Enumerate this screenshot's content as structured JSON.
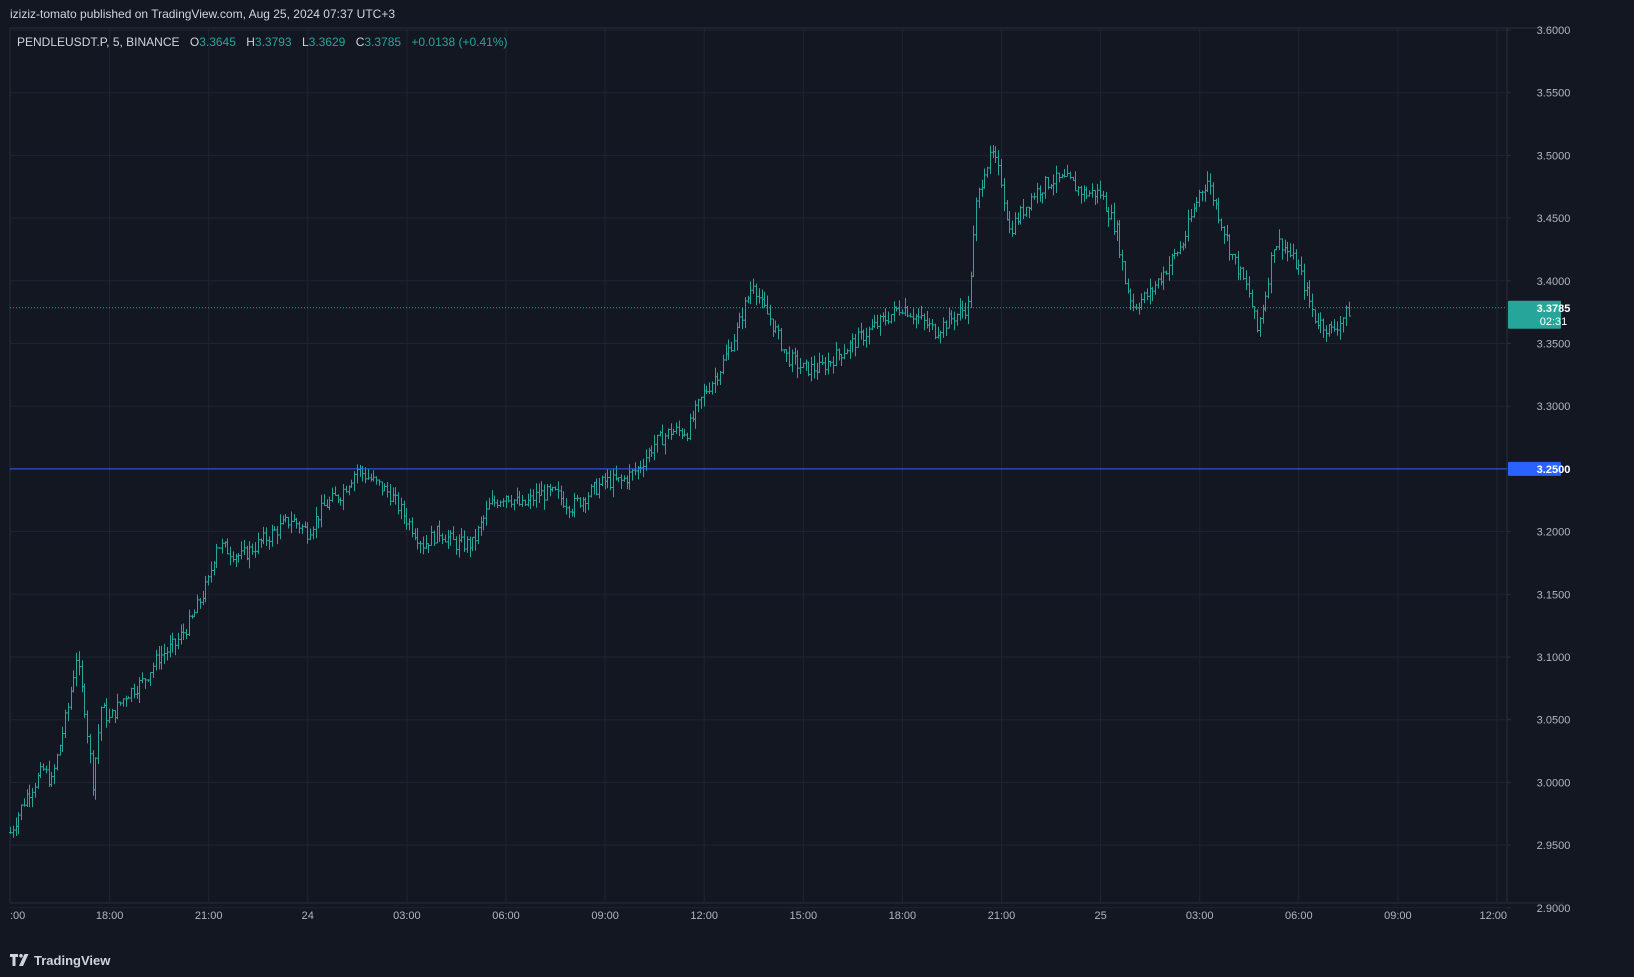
{
  "header": {
    "publish_line": "iziziz-tomato published on TradingView.com, Aug 25, 2024 07:37 UTC+3"
  },
  "legend": {
    "symbol": "PENDLEUSDT.P, 5, BINANCE",
    "open_label": "O",
    "open": "3.3645",
    "high_label": "H",
    "high": "3.3793",
    "low_label": "L",
    "low": "3.3629",
    "close_label": "C",
    "close": "3.3785",
    "change": "+0.0138 (+0.41%)"
  },
  "footer": {
    "brand": "TradingView",
    "logo_icon": "tradingview-logo-icon"
  },
  "colors": {
    "background": "#131722",
    "grid": "#1f2432",
    "bar": "#26a69a",
    "hline": "#2962ff",
    "price_tag": "#26a69a",
    "hline_tag": "#2962ff"
  },
  "chart_data": {
    "type": "ohlc",
    "symbol": "PENDLEUSDT.P",
    "interval": "5",
    "exchange": "BINANCE",
    "ylim": [
      2.9,
      3.6
    ],
    "yticks": [
      "3.6000",
      "3.5500",
      "3.5000",
      "3.4500",
      "3.4000",
      "3.3500",
      "3.3000",
      "3.2500",
      "3.2000",
      "3.1500",
      "3.1000",
      "3.0500",
      "3.0000",
      "2.9500",
      "2.9000"
    ],
    "xticks": [
      ":00",
      "18:00",
      "21:00",
      "24",
      "03:00",
      "06:00",
      "09:00",
      "12:00",
      "15:00",
      "18:00",
      "21:00",
      "25",
      "03:00",
      "06:00",
      "09:00",
      "12:00"
    ],
    "grid": true,
    "current_price": "3.3785",
    "countdown": "02:31",
    "horizontal_line": "3.2500",
    "close_path": [
      [
        "15:00",
        2.96
      ],
      [
        "15:30",
        2.99
      ],
      [
        "16:00",
        3.01
      ],
      [
        "16:15",
        3.0
      ],
      [
        "16:45",
        3.06
      ],
      [
        "17:00",
        3.1
      ],
      [
        "17:15",
        3.06
      ],
      [
        "17:30",
        3.0
      ],
      [
        "17:45",
        3.06
      ],
      [
        "18:00",
        3.05
      ],
      [
        "18:30",
        3.07
      ],
      [
        "19:00",
        3.08
      ],
      [
        "19:30",
        3.1
      ],
      [
        "20:00",
        3.11
      ],
      [
        "20:30",
        3.13
      ],
      [
        "21:00",
        3.16
      ],
      [
        "21:15",
        3.19
      ],
      [
        "22:00",
        3.18
      ],
      [
        "22:30",
        3.19
      ],
      [
        "23:00",
        3.2
      ],
      [
        "23:30",
        3.21
      ],
      [
        "00:00",
        3.2
      ],
      [
        "00:30",
        3.22
      ],
      [
        "01:00",
        3.23
      ],
      [
        "01:30",
        3.25
      ],
      [
        "02:00",
        3.24
      ],
      [
        "02:30",
        3.23
      ],
      [
        "03:00",
        3.21
      ],
      [
        "03:30",
        3.19
      ],
      [
        "04:00",
        3.2
      ],
      [
        "04:30",
        3.19
      ],
      [
        "05:00",
        3.19
      ],
      [
        "05:30",
        3.22
      ],
      [
        "06:00",
        3.23
      ],
      [
        "06:30",
        3.22
      ],
      [
        "07:00",
        3.23
      ],
      [
        "07:30",
        3.23
      ],
      [
        "08:00",
        3.22
      ],
      [
        "08:30",
        3.23
      ],
      [
        "09:00",
        3.24
      ],
      [
        "09:30",
        3.24
      ],
      [
        "10:00",
        3.25
      ],
      [
        "10:30",
        3.27
      ],
      [
        "11:00",
        3.28
      ],
      [
        "11:30",
        3.28
      ],
      [
        "12:00",
        3.31
      ],
      [
        "12:30",
        3.33
      ],
      [
        "13:00",
        3.36
      ],
      [
        "13:15",
        3.38
      ],
      [
        "13:30",
        3.4
      ],
      [
        "13:45",
        3.38
      ],
      [
        "14:00",
        3.37
      ],
      [
        "14:30",
        3.34
      ],
      [
        "15:00",
        3.33
      ],
      [
        "15:30",
        3.33
      ],
      [
        "16:00",
        3.34
      ],
      [
        "16:30",
        3.35
      ],
      [
        "17:00",
        3.36
      ],
      [
        "17:30",
        3.37
      ],
      [
        "18:00",
        3.38
      ],
      [
        "18:30",
        3.37
      ],
      [
        "19:00",
        3.36
      ],
      [
        "19:30",
        3.37
      ],
      [
        "20:00",
        3.38
      ],
      [
        "20:15",
        3.46
      ],
      [
        "20:30",
        3.49
      ],
      [
        "20:45",
        3.5
      ],
      [
        "21:00",
        3.48
      ],
      [
        "21:15",
        3.44
      ],
      [
        "21:30",
        3.45
      ],
      [
        "22:00",
        3.47
      ],
      [
        "22:30",
        3.48
      ],
      [
        "23:00",
        3.48
      ],
      [
        "23:30",
        3.47
      ],
      [
        "24:00",
        3.47
      ],
      [
        "00:30",
        3.44
      ],
      [
        "00:45",
        3.4
      ],
      [
        "01:00",
        3.38
      ],
      [
        "01:30",
        3.39
      ],
      [
        "02:00",
        3.41
      ],
      [
        "02:30",
        3.43
      ],
      [
        "03:00",
        3.47
      ],
      [
        "03:15",
        3.48
      ],
      [
        "03:30",
        3.46
      ],
      [
        "04:00",
        3.42
      ],
      [
        "04:30",
        3.39
      ],
      [
        "04:45",
        3.36
      ],
      [
        "05:00",
        3.39
      ],
      [
        "05:15",
        3.43
      ],
      [
        "05:30",
        3.43
      ],
      [
        "06:00",
        3.41
      ],
      [
        "06:30",
        3.37
      ],
      [
        "07:00",
        3.36
      ],
      [
        "07:37",
        3.3785
      ]
    ]
  }
}
